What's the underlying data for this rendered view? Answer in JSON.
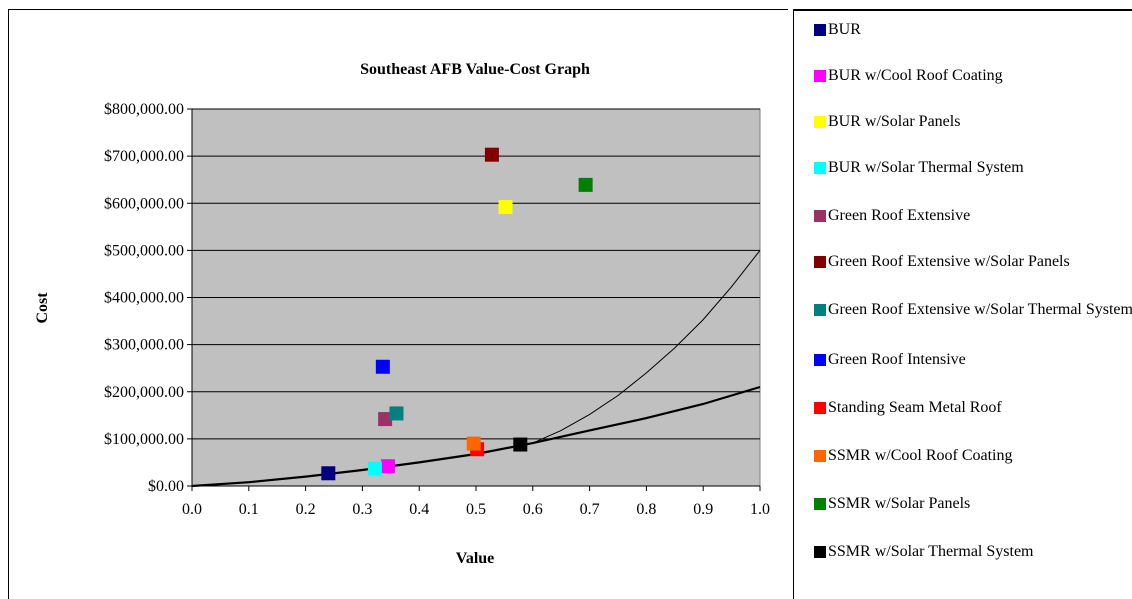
{
  "chart_data": {
    "type": "scatter",
    "title": "Southeast AFB Value-Cost Graph",
    "xlabel": "Value",
    "ylabel": "Cost",
    "xlim": [
      0,
      1
    ],
    "ylim": [
      0,
      800000
    ],
    "x_ticks": [
      "0.0",
      "0.1",
      "0.2",
      "0.3",
      "0.4",
      "0.5",
      "0.6",
      "0.7",
      "0.8",
      "0.9",
      "1.0"
    ],
    "y_ticks": [
      "$0.00",
      "$100,000.00",
      "$200,000.00",
      "$300,000.00",
      "$400,000.00",
      "$500,000.00",
      "$600,000.00",
      "$700,000.00",
      "$800,000.00"
    ],
    "grid": "horizontal",
    "plot_background": "#c0c0c0",
    "legend_position": "right",
    "series": [
      {
        "name": "BUR",
        "color": "#000080",
        "x": 0.24,
        "y": 27000
      },
      {
        "name": "BUR w/Cool Roof Coating",
        "color": "#ff00ff",
        "x": 0.345,
        "y": 42000
      },
      {
        "name": "BUR w/Solar Panels",
        "color": "#ffff00",
        "x": 0.552,
        "y": 592000
      },
      {
        "name": "BUR w/Solar Thermal System",
        "color": "#00ffff",
        "x": 0.322,
        "y": 37000
      },
      {
        "name": "Green Roof Extensive",
        "color": "#993366",
        "x": 0.34,
        "y": 142000
      },
      {
        "name": "Green Roof Extensive w/Solar Panels",
        "color": "#800000",
        "x": 0.528,
        "y": 703000
      },
      {
        "name": "Green Roof Extensive w/Solar Thermal System",
        "color": "#008080",
        "x": 0.36,
        "y": 154000
      },
      {
        "name": "Green Roof Intensive",
        "color": "#0000ff",
        "x": 0.336,
        "y": 253000
      },
      {
        "name": "Standing Seam Metal Roof",
        "color": "#ff0000",
        "x": 0.502,
        "y": 78000
      },
      {
        "name": "SSMR w/Cool Roof Coating",
        "color": "#ff6600",
        "x": 0.496,
        "y": 90000
      },
      {
        "name": "SSMR w/Solar Panels",
        "color": "#008000",
        "x": 0.693,
        "y": 639000
      },
      {
        "name": "SSMR w/Solar Thermal System",
        "color": "#000000",
        "x": 0.578,
        "y": 88000
      }
    ],
    "curves": [
      {
        "style": "thick",
        "color": "#000000",
        "points": [
          [
            0,
            0
          ],
          [
            0.1,
            8000
          ],
          [
            0.2,
            20000
          ],
          [
            0.3,
            34000
          ],
          [
            0.4,
            50000
          ],
          [
            0.5,
            68000
          ],
          [
            0.6,
            91000
          ],
          [
            0.7,
            118000
          ],
          [
            0.8,
            144000
          ],
          [
            0.9,
            174000
          ],
          [
            1.0,
            210000
          ]
        ]
      },
      {
        "style": "thin",
        "color": "#000000",
        "points": [
          [
            0.6,
            91000
          ],
          [
            0.65,
            118000
          ],
          [
            0.7,
            152000
          ],
          [
            0.75,
            192000
          ],
          [
            0.8,
            240000
          ],
          [
            0.85,
            293000
          ],
          [
            0.9,
            353000
          ],
          [
            0.95,
            423000
          ],
          [
            1.0,
            500000
          ]
        ]
      }
    ]
  }
}
